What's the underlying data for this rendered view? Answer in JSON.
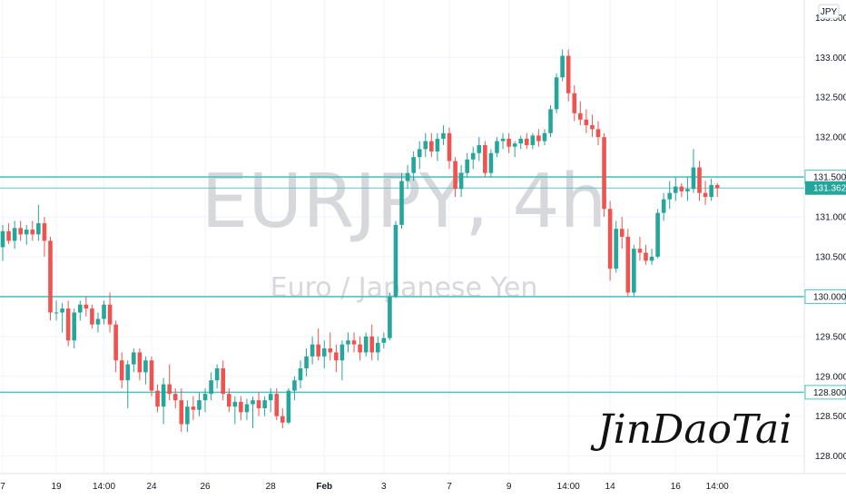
{
  "chart_data": {
    "type": "candlestick",
    "symbol_watermark": "EURJPY, 4h",
    "description_watermark": "Euro / Japanese Yen",
    "currency_label": "JPY",
    "signature": "JinDaoTai",
    "ylim": [
      127.78,
      133.72
    ],
    "y_ticks": [
      "133.000",
      "132.500",
      "132.000",
      "131.500",
      "131.000",
      "130.500",
      "130.000",
      "129.500",
      "129.000",
      "128.500",
      "128.000"
    ],
    "y_top_partial": "133.500",
    "x_labels": [
      {
        "label": "7",
        "i": 0
      },
      {
        "label": "19",
        "i": 9
      },
      {
        "label": "14:00",
        "i": 17
      },
      {
        "label": "24",
        "i": 25
      },
      {
        "label": "26",
        "i": 34
      },
      {
        "label": "28",
        "i": 45
      },
      {
        "label": "Feb",
        "i": 54
      },
      {
        "label": "3",
        "i": 64
      },
      {
        "label": "7",
        "i": 75
      },
      {
        "label": "9",
        "i": 85
      },
      {
        "label": "14:00",
        "i": 95
      },
      {
        "label": "14",
        "i": 102
      },
      {
        "label": "16",
        "i": 113
      },
      {
        "label": "14:00",
        "i": 120
      }
    ],
    "horizontal_levels": [
      {
        "value": 131.5,
        "label": "131.500"
      },
      {
        "value": 130.0,
        "label": "130.000"
      },
      {
        "value": 128.8,
        "label": "128.800"
      }
    ],
    "current_price": {
      "value": 131.362,
      "label": "131.362"
    },
    "colors": {
      "up": "#26a69a",
      "down": "#ef5350",
      "level": "#4fc3c3",
      "grid": "#f0f3fa"
    },
    "ohlc": [
      [
        130.62,
        130.9,
        130.45,
        130.82
      ],
      [
        130.82,
        130.92,
        130.66,
        130.7
      ],
      [
        130.7,
        130.95,
        130.6,
        130.86
      ],
      [
        130.86,
        130.95,
        130.7,
        130.78
      ],
      [
        130.78,
        130.9,
        130.65,
        130.84
      ],
      [
        130.84,
        130.95,
        130.7,
        130.78
      ],
      [
        130.78,
        131.15,
        130.7,
        130.92
      ],
      [
        130.92,
        131.0,
        130.5,
        130.7
      ],
      [
        130.7,
        130.75,
        129.7,
        129.8
      ],
      [
        129.8,
        129.95,
        129.7,
        129.8
      ],
      [
        129.8,
        129.92,
        129.55,
        129.85
      ],
      [
        129.85,
        129.95,
        129.38,
        129.45
      ],
      [
        129.45,
        129.85,
        129.35,
        129.8
      ],
      [
        129.8,
        129.95,
        129.7,
        129.9
      ],
      [
        129.9,
        130.0,
        129.75,
        129.85
      ],
      [
        129.85,
        129.9,
        129.6,
        129.65
      ],
      [
        129.65,
        129.8,
        129.55,
        129.72
      ],
      [
        129.72,
        129.95,
        129.65,
        129.9
      ],
      [
        129.9,
        130.05,
        129.55,
        129.65
      ],
      [
        129.65,
        129.7,
        129.05,
        129.2
      ],
      [
        129.2,
        129.3,
        128.85,
        128.95
      ],
      [
        128.95,
        129.2,
        128.6,
        129.15
      ],
      [
        129.15,
        129.35,
        129.05,
        129.3
      ],
      [
        129.3,
        129.35,
        128.95,
        129.05
      ],
      [
        129.05,
        129.25,
        128.9,
        129.2
      ],
      [
        129.2,
        129.25,
        128.75,
        128.82
      ],
      [
        128.82,
        128.9,
        128.55,
        128.62
      ],
      [
        128.62,
        128.98,
        128.4,
        128.9
      ],
      [
        128.9,
        129.15,
        128.7,
        128.78
      ],
      [
        128.78,
        128.85,
        128.6,
        128.7
      ],
      [
        128.7,
        128.85,
        128.3,
        128.4
      ],
      [
        128.4,
        128.7,
        128.3,
        128.62
      ],
      [
        128.62,
        128.75,
        128.45,
        128.58
      ],
      [
        128.58,
        128.8,
        128.5,
        128.7
      ],
      [
        128.7,
        128.85,
        128.55,
        128.78
      ],
      [
        128.78,
        129.05,
        128.7,
        128.95
      ],
      [
        128.95,
        129.15,
        128.85,
        129.1
      ],
      [
        129.1,
        129.2,
        128.7,
        128.78
      ],
      [
        128.78,
        128.85,
        128.55,
        128.62
      ],
      [
        128.62,
        128.75,
        128.4,
        128.68
      ],
      [
        128.68,
        128.75,
        128.45,
        128.55
      ],
      [
        128.55,
        128.72,
        128.45,
        128.65
      ],
      [
        128.65,
        128.75,
        128.35,
        128.7
      ],
      [
        128.7,
        128.8,
        128.5,
        128.6
      ],
      [
        128.6,
        128.75,
        128.5,
        128.7
      ],
      [
        128.7,
        128.85,
        128.55,
        128.78
      ],
      [
        128.78,
        128.85,
        128.45,
        128.5
      ],
      [
        128.5,
        128.6,
        128.35,
        128.42
      ],
      [
        128.42,
        128.85,
        128.4,
        128.82
      ],
      [
        128.82,
        129.0,
        128.7,
        128.95
      ],
      [
        128.95,
        129.2,
        128.85,
        129.1
      ],
      [
        129.1,
        129.35,
        129.0,
        129.25
      ],
      [
        129.25,
        129.5,
        129.15,
        129.4
      ],
      [
        129.4,
        129.6,
        129.2,
        129.25
      ],
      [
        129.25,
        129.45,
        129.1,
        129.35
      ],
      [
        129.35,
        129.55,
        129.2,
        129.3
      ],
      [
        129.3,
        129.4,
        129.05,
        129.2
      ],
      [
        129.2,
        129.45,
        128.95,
        129.4
      ],
      [
        129.4,
        129.55,
        129.3,
        129.45
      ],
      [
        129.45,
        129.55,
        129.3,
        129.4
      ],
      [
        129.4,
        129.5,
        129.2,
        129.3
      ],
      [
        129.3,
        129.55,
        129.25,
        129.5
      ],
      [
        129.5,
        129.65,
        129.2,
        129.3
      ],
      [
        129.3,
        129.5,
        129.2,
        129.42
      ],
      [
        129.42,
        129.55,
        129.35,
        129.48
      ],
      [
        129.48,
        130.05,
        129.45,
        130.0
      ],
      [
        130.0,
        130.95,
        129.98,
        130.9
      ],
      [
        130.9,
        131.55,
        130.85,
        131.45
      ],
      [
        131.45,
        131.65,
        131.35,
        131.55
      ],
      [
        131.55,
        131.82,
        131.45,
        131.75
      ],
      [
        131.75,
        131.95,
        131.6,
        131.85
      ],
      [
        131.85,
        132.05,
        131.75,
        131.95
      ],
      [
        131.95,
        132.05,
        131.75,
        131.82
      ],
      [
        131.82,
        132.05,
        131.7,
        131.98
      ],
      [
        131.98,
        132.15,
        131.9,
        132.05
      ],
      [
        132.05,
        132.12,
        131.6,
        131.7
      ],
      [
        131.7,
        131.75,
        131.25,
        131.35
      ],
      [
        131.35,
        131.65,
        131.25,
        131.55
      ],
      [
        131.55,
        131.8,
        131.5,
        131.72
      ],
      [
        131.72,
        131.88,
        131.6,
        131.8
      ],
      [
        131.8,
        132.0,
        131.7,
        131.9
      ],
      [
        131.9,
        131.95,
        131.5,
        131.55
      ],
      [
        131.55,
        131.85,
        131.5,
        131.8
      ],
      [
        131.8,
        132.0,
        131.75,
        131.95
      ],
      [
        131.95,
        132.05,
        131.85,
        131.98
      ],
      [
        131.98,
        132.05,
        131.8,
        131.88
      ],
      [
        131.88,
        131.95,
        131.75,
        131.92
      ],
      [
        131.92,
        132.02,
        131.85,
        131.98
      ],
      [
        131.98,
        132.05,
        131.85,
        131.9
      ],
      [
        131.9,
        132.05,
        131.85,
        132.02
      ],
      [
        132.02,
        132.1,
        131.88,
        131.95
      ],
      [
        131.95,
        132.1,
        131.9,
        132.05
      ],
      [
        132.05,
        132.4,
        132.0,
        132.35
      ],
      [
        132.35,
        132.8,
        132.3,
        132.75
      ],
      [
        132.75,
        133.1,
        132.7,
        133.02
      ],
      [
        133.02,
        133.1,
        132.45,
        132.55
      ],
      [
        132.55,
        132.65,
        132.2,
        132.3
      ],
      [
        132.3,
        132.45,
        132.15,
        132.22
      ],
      [
        132.22,
        132.35,
        132.05,
        132.15
      ],
      [
        132.15,
        132.28,
        132.0,
        132.1
      ],
      [
        132.1,
        132.2,
        131.9,
        132.0
      ],
      [
        132.0,
        132.05,
        131.0,
        131.1
      ],
      [
        131.1,
        131.2,
        130.2,
        130.35
      ],
      [
        130.35,
        130.95,
        130.3,
        130.85
      ],
      [
        130.85,
        131.0,
        130.6,
        130.75
      ],
      [
        130.75,
        130.85,
        130.0,
        130.05
      ],
      [
        130.05,
        130.65,
        130.0,
        130.6
      ],
      [
        130.6,
        130.75,
        130.45,
        130.55
      ],
      [
        130.55,
        130.65,
        130.4,
        130.45
      ],
      [
        130.45,
        130.6,
        130.4,
        130.5
      ],
      [
        130.5,
        131.1,
        130.48,
        131.05
      ],
      [
        131.05,
        131.3,
        130.95,
        131.22
      ],
      [
        131.22,
        131.45,
        131.1,
        131.3
      ],
      [
        131.3,
        131.5,
        131.2,
        131.38
      ],
      [
        131.38,
        131.42,
        131.25,
        131.32
      ],
      [
        131.32,
        131.5,
        131.2,
        131.35
      ],
      [
        131.35,
        131.85,
        131.3,
        131.62
      ],
      [
        131.62,
        131.7,
        131.2,
        131.3
      ],
      [
        131.3,
        131.45,
        131.15,
        131.25
      ],
      [
        131.25,
        131.48,
        131.2,
        131.4
      ],
      [
        131.4,
        131.42,
        131.25,
        131.36
      ]
    ]
  }
}
